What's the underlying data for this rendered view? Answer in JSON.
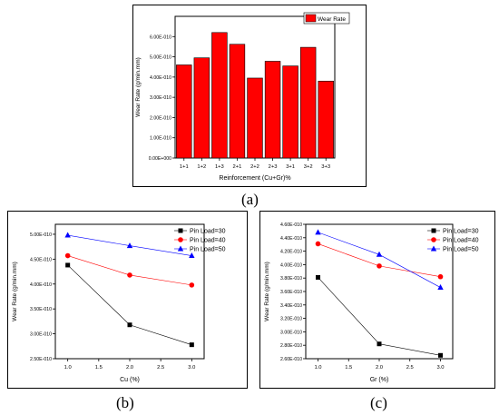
{
  "panels": [
    {
      "label": "(a)"
    },
    {
      "label": "(b)"
    },
    {
      "label": "(c)"
    }
  ],
  "chart_data": [
    {
      "type": "bar",
      "categories": [
        "1+1",
        "1+2",
        "1+3",
        "2+1",
        "2+2",
        "2+3",
        "3+1",
        "3+2",
        "3+3"
      ],
      "series": [
        {
          "name": "Wear Rate",
          "color": "#ff0000",
          "values": [
            4.6e-10,
            4.95e-10,
            6.2e-10,
            5.62e-10,
            3.95e-10,
            4.78e-10,
            4.55e-10,
            5.47e-10,
            3.8e-10
          ]
        }
      ],
      "xlabel": "Reinforcement (Cu+Gr)%",
      "ylabel": "Wear Rate (g/min.mm)",
      "ylim": [
        0,
        7e-10
      ],
      "yticks": [
        0,
        1e-10,
        2e-10,
        3e-10,
        4e-10,
        5e-10,
        6e-10
      ],
      "ytick_labels": [
        "0.00E+000",
        "1.00E-010",
        "2.00E-010",
        "3.00E-010",
        "4.00E-010",
        "5.00E-010",
        "6.00E-010"
      ],
      "legend": "top-right",
      "grid": false
    },
    {
      "type": "line",
      "x": [
        1.0,
        2.0,
        3.0
      ],
      "series": [
        {
          "name": "Pin Load=30",
          "color": "#000000",
          "marker": "square",
          "values": [
            4.38e-10,
            3.18e-10,
            2.78e-10
          ]
        },
        {
          "name": "Pin Load=40",
          "color": "#ff0000",
          "marker": "circle",
          "values": [
            4.57e-10,
            4.18e-10,
            3.98e-10
          ]
        },
        {
          "name": "Pin Load=50",
          "color": "#0000ff",
          "marker": "triangle",
          "values": [
            4.98e-10,
            4.77e-10,
            4.57e-10
          ]
        }
      ],
      "xlabel": "Cu (%)",
      "ylabel": "Wear Rate (g/min.mm)",
      "xlim": [
        0.8,
        3.2
      ],
      "xticks": [
        1.0,
        1.5,
        2.0,
        2.5,
        3.0
      ],
      "xtick_labels": [
        "1.0",
        "1.5",
        "2.0",
        "2.5",
        "3.0"
      ],
      "ylim": [
        2.5e-10,
        5.2e-10
      ],
      "yticks": [
        2.5e-10,
        3e-10,
        3.5e-10,
        4e-10,
        4.5e-10,
        5e-10
      ],
      "ytick_labels": [
        "2.50E-010",
        "3.00E-010",
        "3.50E-010",
        "4.00E-010",
        "4.50E-010",
        "5.00E-010"
      ],
      "legend": "top-right",
      "grid": false
    },
    {
      "type": "line",
      "x": [
        1.0,
        2.0,
        3.0
      ],
      "series": [
        {
          "name": "Pin Load=30",
          "color": "#000000",
          "marker": "square",
          "values": [
            3.81e-10,
            2.82e-10,
            2.65e-10
          ]
        },
        {
          "name": "Pin Load=40",
          "color": "#ff0000",
          "marker": "circle",
          "values": [
            4.31e-10,
            3.98e-10,
            3.82e-10
          ]
        },
        {
          "name": "Pin Load=50",
          "color": "#0000ff",
          "marker": "triangle",
          "values": [
            4.48e-10,
            4.15e-10,
            3.66e-10
          ]
        }
      ],
      "xlabel": "Gr (%)",
      "ylabel": "Wear Rate (g/min.mm)",
      "xlim": [
        0.8,
        3.2
      ],
      "xticks": [
        1.0,
        1.5,
        2.0,
        2.5,
        3.0
      ],
      "xtick_labels": [
        "1.0",
        "1.5",
        "2.0",
        "2.5",
        "3.0"
      ],
      "ylim": [
        2.6e-10,
        4.6e-10
      ],
      "yticks": [
        2.6e-10,
        2.8e-10,
        3e-10,
        3.2e-10,
        3.4e-10,
        3.6e-10,
        3.8e-10,
        4e-10,
        4.2e-10,
        4.4e-10,
        4.6e-10
      ],
      "ytick_labels": [
        "2.60E-010",
        "2.80E-010",
        "3.00E-010",
        "3.20E-010",
        "3.40E-010",
        "3.60E-010",
        "3.80E-010",
        "4.00E-010",
        "4.20E-010",
        "4.40E-010",
        "4.60E-010"
      ],
      "legend": "top-right",
      "grid": false
    }
  ]
}
